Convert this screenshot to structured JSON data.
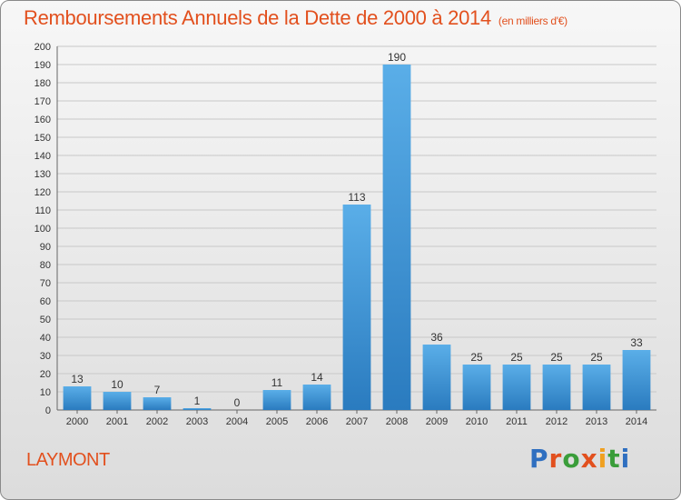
{
  "header": {
    "title": "Remboursements Annuels de la Dette de 2000 à 2014",
    "unit": "(en milliers d'€)"
  },
  "commune": "LAYMONT",
  "logo": {
    "text": "Proxiti",
    "letter_colors": [
      "#2f6fc0",
      "#e2501e",
      "#3a9d3a",
      "#e2501e",
      "#f0a020",
      "#3a9d3a",
      "#2f6fc0"
    ]
  },
  "colors": {
    "title": "#e2501e",
    "bar_light": "#5aaee8",
    "bar_dark": "#2a7bbf",
    "grid": "#c8c8c8"
  },
  "chart_data": {
    "type": "bar",
    "title": "Remboursements Annuels de la Dette de 2000 à 2014",
    "subtitle": "(en milliers d'€)",
    "categories": [
      "2000",
      "2001",
      "2002",
      "2003",
      "2004",
      "2005",
      "2006",
      "2007",
      "2008",
      "2009",
      "2010",
      "2011",
      "2012",
      "2013",
      "2014"
    ],
    "values": [
      13,
      10,
      7,
      1,
      0,
      11,
      14,
      113,
      190,
      36,
      25,
      25,
      25,
      25,
      33
    ],
    "ylim": [
      0,
      200
    ],
    "ytick_step": 10,
    "grid": true,
    "data_labels": true
  }
}
